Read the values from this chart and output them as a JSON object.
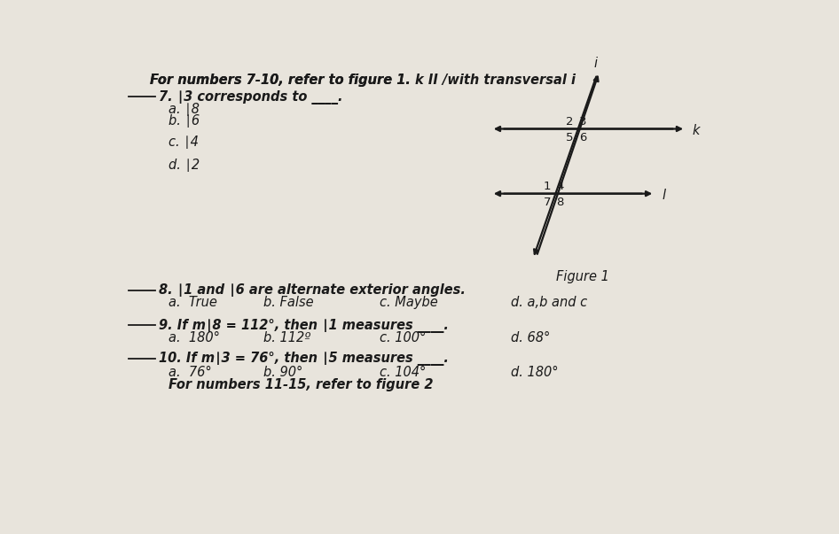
{
  "bg_color": "#e8e4dc",
  "text_color": "#1a1a1a",
  "line_color": "#1a1a1a",
  "font_size_main": 10.5,
  "font_size_label": 9,
  "header": "For numbers 7-10, refer to figure 1. k II /with transversal i",
  "q7_stem": "7. ∣3 corresponds to",
  "q7_a": "a. ∣8",
  "q7_b": "b. ∣6",
  "q7_c": "c. ∣4",
  "q7_d": "d. ∣2",
  "q8_stem": "8. ∣1 and ∣6 are alternate exterior angles.",
  "q8_a": "a.  True",
  "q8_b": "b. False",
  "q8_c": "c. Maybe",
  "q8_d": "d. a,b and c",
  "q9_stem": "9. If m∣8 = 112°, then ∣1 measures",
  "q9_a": "a.  180°",
  "q9_b": "b. 112º",
  "q9_c": "c. 100°",
  "q9_d": "d. 68°",
  "q10_stem": "10. If m∣3 = 76°, then ∣5 measures",
  "q10_a": "a.  76°",
  "q10_b": "b. 90°",
  "q10_c": "c. 104°",
  "q10_d": "d. 180°",
  "footer": "For numbers 11-15, refer to figure 2",
  "figure_label": "Figure 1",
  "fig_i_label": "i",
  "fig_k_label": "k",
  "fig_l_label": "l"
}
